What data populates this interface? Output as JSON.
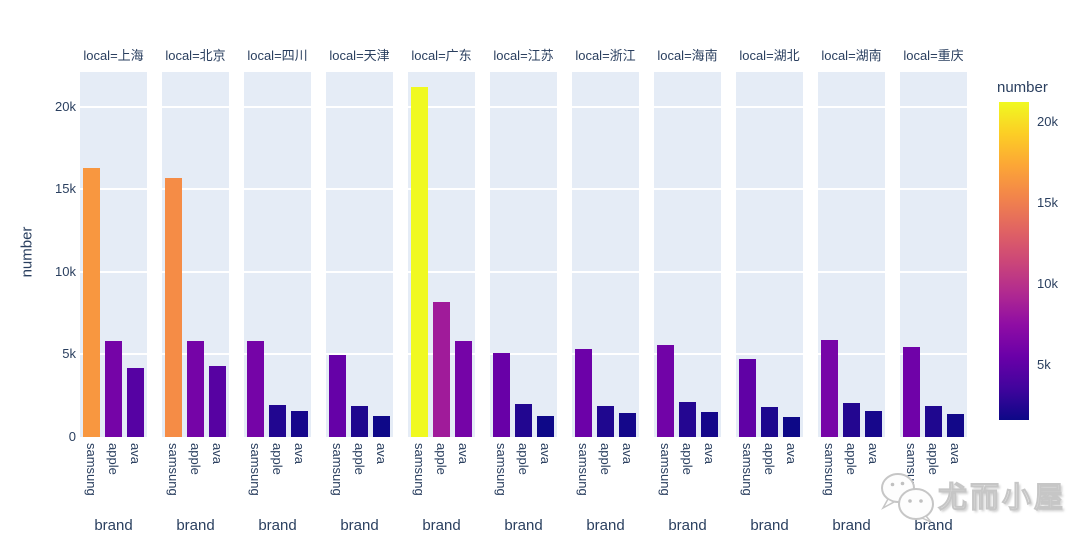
{
  "colors": {
    "text": "#2a3f5f",
    "panel_bg": "#e5ecf6",
    "grid": "#ffffff",
    "background": "#ffffff",
    "watermark_gray": "#c6c6c6"
  },
  "y_axis": {
    "title": "number",
    "ticks": [
      "0",
      "5k",
      "10k",
      "15k",
      "20k"
    ],
    "tick_values": [
      0,
      5000,
      10000,
      15000,
      20000
    ]
  },
  "x_axis": {
    "title": "brand"
  },
  "colorbar": {
    "title": "number",
    "cmin": 1600,
    "cmax": 21230,
    "ticks": [
      {
        "label": "20k",
        "value": 20000
      },
      {
        "label": "15k",
        "value": 15000
      },
      {
        "label": "10k",
        "value": 10000
      },
      {
        "label": "5k",
        "value": 5000
      }
    ],
    "colorscale": [
      "#0d0887",
      "#41049d",
      "#6a00a8",
      "#8f0da4",
      "#b12a90",
      "#cc4778",
      "#e16462",
      "#f2844b",
      "#fca636",
      "#fcce25",
      "#f0f921"
    ]
  },
  "watermark": {
    "text": "尤而小屋",
    "icon": "wechat-icon"
  },
  "chart_data": {
    "type": "bar",
    "title": "",
    "xlabel": "brand",
    "ylabel": "number",
    "ylim": [
      0,
      22100
    ],
    "grid": true,
    "legend_position": "colorbar-right",
    "colorscale": "plasma",
    "color_by": "number",
    "facet_field": "local",
    "categories": [
      "samsung",
      "apple",
      "ava"
    ],
    "facets": [
      {
        "label": "local=上海",
        "local": "上海",
        "bars": [
          {
            "brand": "samsung",
            "value": 16300,
            "color": "#f89740"
          },
          {
            "brand": "apple",
            "value": 5800,
            "color": "#7504a7"
          },
          {
            "brand": "ava",
            "value": 4200,
            "color": "#5602a3"
          }
        ]
      },
      {
        "label": "local=北京",
        "local": "北京",
        "bars": [
          {
            "brand": "samsung",
            "value": 15700,
            "color": "#f58c46"
          },
          {
            "brand": "apple",
            "value": 5800,
            "color": "#7504a7"
          },
          {
            "brand": "ava",
            "value": 4300,
            "color": "#5702a2"
          }
        ]
      },
      {
        "label": "local=四川",
        "local": "四川",
        "bars": [
          {
            "brand": "samsung",
            "value": 5800,
            "color": "#7504a7"
          },
          {
            "brand": "apple",
            "value": 1950,
            "color": "#210690"
          },
          {
            "brand": "ava",
            "value": 1550,
            "color": "#16078b"
          }
        ]
      },
      {
        "label": "local=天津",
        "local": "天津",
        "bars": [
          {
            "brand": "samsung",
            "value": 4950,
            "color": "#6501a7"
          },
          {
            "brand": "apple",
            "value": 1850,
            "color": "#1e078e"
          },
          {
            "brand": "ava",
            "value": 1250,
            "color": "#0e0888"
          }
        ]
      },
      {
        "label": "local=广东",
        "local": "广东",
        "bars": [
          {
            "brand": "samsung",
            "value": 21200,
            "color": "#f0f921"
          },
          {
            "brand": "apple",
            "value": 8200,
            "color": "#a01b9a"
          },
          {
            "brand": "ava",
            "value": 5800,
            "color": "#7504a7"
          }
        ]
      },
      {
        "label": "local=江苏",
        "local": "江苏",
        "bars": [
          {
            "brand": "samsung",
            "value": 5100,
            "color": "#6800a7"
          },
          {
            "brand": "apple",
            "value": 2000,
            "color": "#220690"
          },
          {
            "brand": "ava",
            "value": 1250,
            "color": "#0e0888"
          }
        ]
      },
      {
        "label": "local=浙江",
        "local": "浙江",
        "bars": [
          {
            "brand": "samsung",
            "value": 5300,
            "color": "#6c01a8"
          },
          {
            "brand": "apple",
            "value": 1900,
            "color": "#1f078f"
          },
          {
            "brand": "ava",
            "value": 1450,
            "color": "#14078a"
          }
        ]
      },
      {
        "label": "local=海南",
        "local": "海南",
        "bars": [
          {
            "brand": "samsung",
            "value": 5600,
            "color": "#7103a7"
          },
          {
            "brand": "apple",
            "value": 2100,
            "color": "#240691"
          },
          {
            "brand": "ava",
            "value": 1500,
            "color": "#15078a"
          }
        ]
      },
      {
        "label": "local=湖北",
        "local": "湖北",
        "bars": [
          {
            "brand": "samsung",
            "value": 4700,
            "color": "#6001a5"
          },
          {
            "brand": "apple",
            "value": 1800,
            "color": "#1d078e"
          },
          {
            "brand": "ava",
            "value": 1200,
            "color": "#0d0887"
          }
        ]
      },
      {
        "label": "local=湖南",
        "local": "湖南",
        "bars": [
          {
            "brand": "samsung",
            "value": 5900,
            "color": "#7705a7"
          },
          {
            "brand": "apple",
            "value": 2050,
            "color": "#230690"
          },
          {
            "brand": "ava",
            "value": 1600,
            "color": "#17078b"
          }
        ]
      },
      {
        "label": "local=重庆",
        "local": "重庆",
        "bars": [
          {
            "brand": "samsung",
            "value": 5450,
            "color": "#6f02a8"
          },
          {
            "brand": "apple",
            "value": 1900,
            "color": "#1f078f"
          },
          {
            "brand": "ava",
            "value": 1400,
            "color": "#120889"
          }
        ]
      }
    ]
  }
}
